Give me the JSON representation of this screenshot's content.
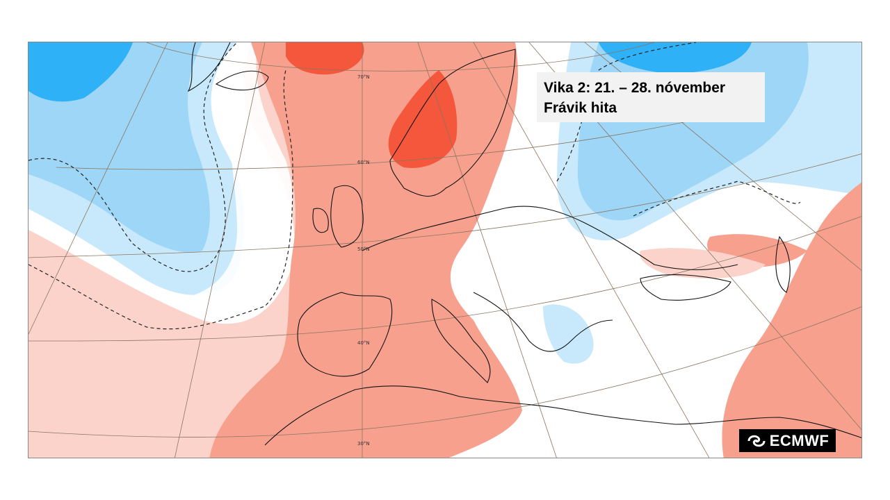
{
  "map": {
    "title_line1": "Vika 2: 21. – 28. nóvember",
    "title_line2": "Frávik hita",
    "latitude_labels": [
      "70°N",
      "60°N",
      "50°N",
      "40°N",
      "30°N"
    ],
    "logo_text": "ECMWF",
    "logo_icon": "ecmwf-swirl-icon",
    "colors": {
      "warm_strong": "#f4573c",
      "warm_medium": "#f7a08e",
      "warm_light": "#fbd3cb",
      "neutral": "#ffffff",
      "cold_light": "#c8e9fb",
      "cold_medium": "#9dd6f7",
      "cold_strong": "#2fb1f7",
      "title_box": "#f2f2f2"
    }
  }
}
